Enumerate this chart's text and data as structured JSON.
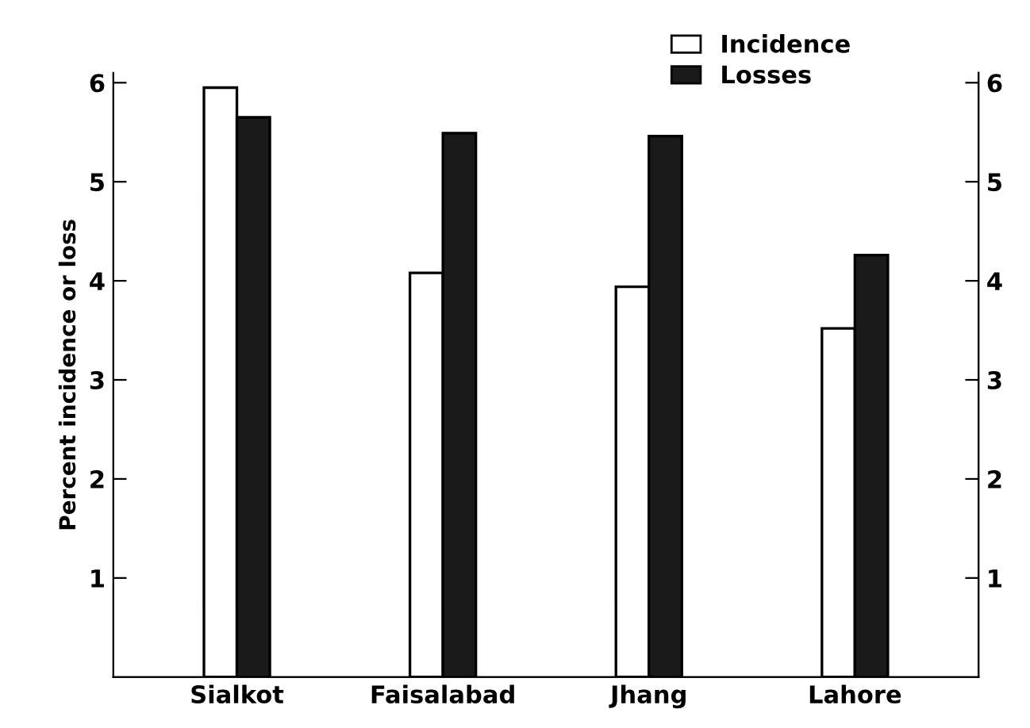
{
  "chart_data": {
    "type": "bar",
    "ylabel": "Percent incidence or loss",
    "categories": [
      "Sialkot",
      "Faisalabad",
      "Jhang",
      "Lahore"
    ],
    "series": [
      {
        "name": "Incidence",
        "color": "#ffffff",
        "values": [
          5.95,
          4.08,
          3.94,
          3.52
        ]
      },
      {
        "name": "Losses",
        "color": "#1a1a1a",
        "values": [
          5.65,
          5.49,
          5.46,
          4.26
        ]
      }
    ],
    "ylim": [
      0,
      6.1
    ],
    "yticks": [
      1,
      2,
      3,
      4,
      5,
      6
    ],
    "y2lim": [
      0,
      6.1
    ],
    "y2ticks": [
      1,
      2,
      3,
      4,
      5,
      6
    ],
    "grid": false,
    "legend": "top right"
  }
}
